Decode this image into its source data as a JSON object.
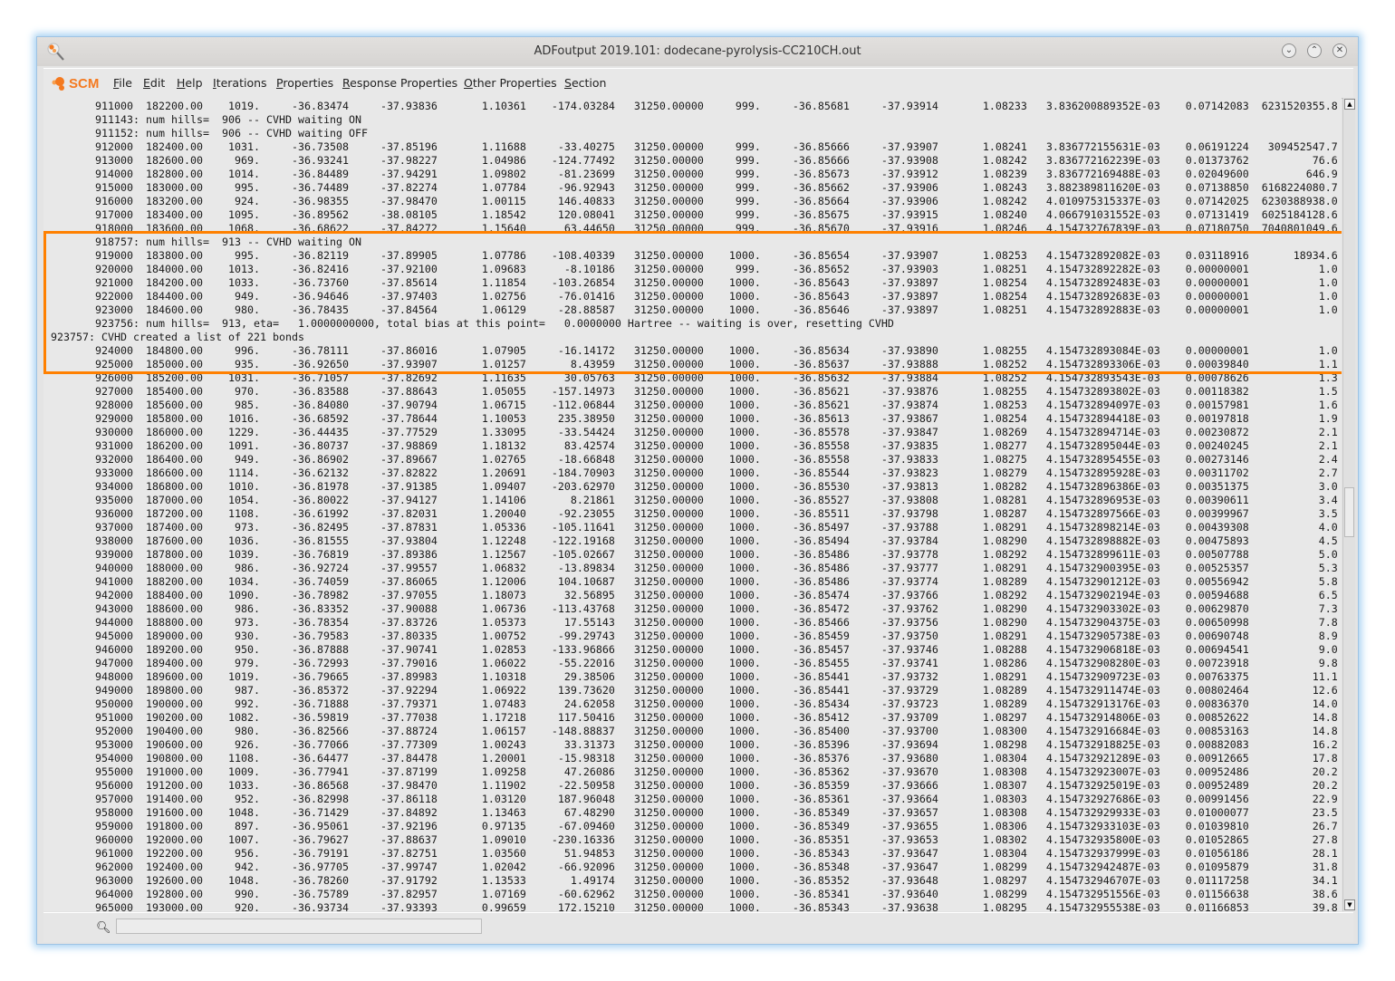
{
  "window": {
    "title": "ADFoutput 2019.101: dodecane-pyrolysis-CC210CH.out",
    "controls": [
      "minimize",
      "maximize",
      "close"
    ]
  },
  "menubar": {
    "logo": "SCM",
    "items": [
      {
        "label": "File",
        "mnemonic": "F",
        "rest": "ile"
      },
      {
        "label": "Edit",
        "mnemonic": "E",
        "rest": "dit"
      },
      {
        "label": "Help",
        "mnemonic": "H",
        "rest": "elp"
      },
      {
        "label": "Iterations",
        "mnemonic": "I",
        "rest": "terations"
      },
      {
        "label": "Properties",
        "mnemonic": "P",
        "rest": "roperties"
      },
      {
        "label": "Response Properties",
        "mnemonic": "R",
        "rest": "esponse Properties"
      },
      {
        "label": "Other Properties",
        "mnemonic": "O",
        "rest": "ther Properties"
      },
      {
        "label": "Section",
        "mnemonic": "S",
        "rest": "ection"
      }
    ]
  },
  "highlight": {
    "color": "#ff8000"
  },
  "search": {
    "value": "",
    "placeholder": ""
  },
  "output_lines": [
    {
      "row": "911000 182200.00 1019. -36.83474 -37.93836 1.10361 -174.03284 31250.00000 999. -36.85681 -37.93914 1.08233 3.836200889352E-03 0.07142083 6231520355.8"
    },
    {
      "msg": "       911143: num hills=  906 -- CVHD waiting ON"
    },
    {
      "msg": "       911152: num hills=  906 -- CVHD waiting OFF"
    },
    {
      "row": "912000 182400.00 1031. -36.73508 -37.85196 1.11688 -33.40275 31250.00000 999. -36.85666 -37.93907 1.08241 3.836772155631E-03 0.06191224 309452547.7"
    },
    {
      "row": "913000 182600.00 969. -36.93241 -37.98227 1.04986 -124.77492 31250.00000 999. -36.85666 -37.93908 1.08242 3.836772162239E-03 0.01373762 76.6"
    },
    {
      "row": "914000 182800.00 1014. -36.84489 -37.94291 1.09802 -81.23699 31250.00000 999. -36.85673 -37.93912 1.08239 3.836772169488E-03 0.02049600 646.9"
    },
    {
      "row": "915000 183000.00 995. -36.74489 -37.82274 1.07784 -96.92943 31250.00000 999. -36.85662 -37.93906 1.08243 3.882389811620E-03 0.07138850 6168224080.7"
    },
    {
      "row": "916000 183200.00 924. -36.98355 -37.98470 1.00115 146.40833 31250.00000 999. -36.85664 -37.93906 1.08242 4.010975315337E-03 0.07142025 6230388938.0"
    },
    {
      "row": "917000 183400.00 1095. -36.89562 -38.08105 1.18542 120.08041 31250.00000 999. -36.85675 -37.93915 1.08240 4.066791031552E-03 0.07131419 6025184128.6"
    },
    {
      "row": "918000 183600.00 1068. -36.68622 -37.84272 1.15640 63.44650 31250.00000 999. -36.85670 -37.93916 1.08246 4.154732767839E-03 0.07180750 7040801049.6"
    },
    {
      "msg": "       918757: num hills=  913 -- CVHD waiting ON"
    },
    {
      "row": "919000 183800.00 995. -36.82119 -37.89905 1.07786 -108.40339 31250.00000 1000. -36.85654 -37.93907 1.08253 4.154732892082E-03 0.03118916 18934.6"
    },
    {
      "row": "920000 184000.00 1013. -36.82416 -37.92100 1.09683 -8.10186 31250.00000 999. -36.85652 -37.93903 1.08251 4.154732892282E-03 0.00000001 1.0"
    },
    {
      "row": "921000 184200.00 1033. -36.73760 -37.85614 1.11854 -103.26854 31250.00000 1000. -36.85643 -37.93897 1.08254 4.154732892483E-03 0.00000001 1.0"
    },
    {
      "row": "922000 184400.00 949. -36.94646 -37.97403 1.02756 -76.01416 31250.00000 1000. -36.85643 -37.93897 1.08254 4.154732892683E-03 0.00000001 1.0"
    },
    {
      "row": "923000 184600.00 980. -36.78435 -37.84564 1.06129 -28.88587 31250.00000 1000. -36.85646 -37.93897 1.08251 4.154732892883E-03 0.00000001 1.0"
    },
    {
      "msg": "       923756: num hills=  913, eta=   1.0000000000, total bias at this point=   0.0000000 Hartree -- waiting is over, resetting CVHD"
    },
    {
      "msg": "923757: CVHD created a list of 221 bonds"
    },
    {
      "row": "924000 184800.00 996. -36.78111 -37.86016 1.07905 -16.14172 31250.00000 1000. -36.85634 -37.93890 1.08255 4.154732893084E-03 0.00000001 1.0"
    },
    {
      "row": "925000 185000.00 935. -36.92650 -37.93907 1.01257 8.43959 31250.00000 1000. -36.85637 -37.93888 1.08252 4.154732893306E-03 0.00039840 1.1"
    },
    {
      "row": "926000 185200.00 1031. -36.71057 -37.82692 1.11635 30.05763 31250.00000 1000. -36.85632 -37.93884 1.08252 4.154732893543E-03 0.00078626 1.3"
    },
    {
      "row": "927000 185400.00 970. -36.83588 -37.88643 1.05055 -157.14973 31250.00000 1000. -36.85621 -37.93876 1.08255 4.154732893802E-03 0.00118382 1.5"
    },
    {
      "row": "928000 185600.00 985. -36.84080 -37.90794 1.06715 -112.06844 31250.00000 1000. -36.85621 -37.93874 1.08253 4.154732894097E-03 0.00157981 1.6"
    },
    {
      "row": "929000 185800.00 1016. -36.68592 -37.78644 1.10053 235.38950 31250.00000 1000. -36.85613 -37.93867 1.08254 4.154732894418E-03 0.00197818 1.9"
    },
    {
      "row": "930000 186000.00 1229. -36.44435 -37.77529 1.33095 -33.54424 31250.00000 1000. -36.85578 -37.93847 1.08269 4.154732894714E-03 0.00230872 2.1"
    },
    {
      "row": "931000 186200.00 1091. -36.80737 -37.98869 1.18132 83.42574 31250.00000 1000. -36.85558 -37.93835 1.08277 4.154732895044E-03 0.00240245 2.1"
    },
    {
      "row": "932000 186400.00 949. -36.86902 -37.89667 1.02765 -18.66848 31250.00000 1000. -36.85558 -37.93833 1.08275 4.154732895455E-03 0.00273146 2.4"
    },
    {
      "row": "933000 186600.00 1114. -36.62132 -37.82822 1.20691 -184.70903 31250.00000 1000. -36.85544 -37.93823 1.08279 4.154732895928E-03 0.00311702 2.7"
    },
    {
      "row": "934000 186800.00 1010. -36.81978 -37.91385 1.09407 -203.62970 31250.00000 1000. -36.85530 -37.93813 1.08282 4.154732896386E-03 0.00351375 3.0"
    },
    {
      "row": "935000 187000.00 1054. -36.80022 -37.94127 1.14106 8.21861 31250.00000 1000. -36.85527 -37.93808 1.08281 4.154732896953E-03 0.00390611 3.4"
    },
    {
      "row": "936000 187200.00 1108. -36.61992 -37.82031 1.20040 -92.23055 31250.00000 1000. -36.85511 -37.93798 1.08287 4.154732897566E-03 0.00399967 3.5"
    },
    {
      "row": "937000 187400.00 973. -36.82495 -37.87831 1.05336 -105.11641 31250.00000 1000. -36.85497 -37.93788 1.08291 4.154732898214E-03 0.00439308 4.0"
    },
    {
      "row": "938000 187600.00 1036. -36.81555 -37.93804 1.12248 -122.19168 31250.00000 1000. -36.85494 -37.93784 1.08290 4.154732898882E-03 0.00475893 4.5"
    },
    {
      "row": "939000 187800.00 1039. -36.76819 -37.89386 1.12567 -105.02667 31250.00000 1000. -36.85486 -37.93778 1.08292 4.154732899611E-03 0.00507788 5.0"
    },
    {
      "row": "940000 188000.00 986. -36.92724 -37.99557 1.06832 -13.89834 31250.00000 1000. -36.85486 -37.93777 1.08291 4.154732900395E-03 0.00525357 5.3"
    },
    {
      "row": "941000 188200.00 1034. -36.74059 -37.86065 1.12006 104.10687 31250.00000 1000. -36.85486 -37.93774 1.08289 4.154732901212E-03 0.00556942 5.8"
    },
    {
      "row": "942000 188400.00 1090. -36.78982 -37.97055 1.18073 32.56895 31250.00000 1000. -36.85474 -37.93766 1.08292 4.154732902194E-03 0.00594688 6.5"
    },
    {
      "row": "943000 188600.00 986. -36.83352 -37.90088 1.06736 -113.43768 31250.00000 1000. -36.85472 -37.93762 1.08290 4.154732903302E-03 0.00629870 7.3"
    },
    {
      "row": "944000 188800.00 973. -36.78354 -37.83726 1.05373 17.55143 31250.00000 1000. -36.85466 -37.93756 1.08290 4.154732904375E-03 0.00650998 7.8"
    },
    {
      "row": "945000 189000.00 930. -36.79583 -37.80335 1.00752 -99.29743 31250.00000 1000. -36.85459 -37.93750 1.08291 4.154732905738E-03 0.00690748 8.9"
    },
    {
      "row": "946000 189200.00 950. -36.87888 -37.90741 1.02853 -133.96866 31250.00000 1000. -36.85457 -37.93746 1.08288 4.154732906818E-03 0.00694541 9.0"
    },
    {
      "row": "947000 189400.00 979. -36.72993 -37.79016 1.06022 -55.22016 31250.00000 1000. -36.85455 -37.93741 1.08286 4.154732908280E-03 0.00723918 9.8"
    },
    {
      "row": "948000 189600.00 1019. -36.79665 -37.89983 1.10318 29.38506 31250.00000 1000. -36.85441 -37.93732 1.08291 4.154732909723E-03 0.00763375 11.1"
    },
    {
      "row": "949000 189800.00 987. -36.85372 -37.92294 1.06922 139.73620 31250.00000 1000. -36.85441 -37.93729 1.08289 4.154732911474E-03 0.00802464 12.6"
    },
    {
      "row": "950000 190000.00 992. -36.71888 -37.79371 1.07483 24.62058 31250.00000 1000. -36.85434 -37.93723 1.08289 4.154732913176E-03 0.00836370 14.0"
    },
    {
      "row": "951000 190200.00 1082. -36.59819 -37.77038 1.17218 117.50416 31250.00000 1000. -36.85412 -37.93709 1.08297 4.154732914806E-03 0.00852622 14.8"
    },
    {
      "row": "952000 190400.00 980. -36.82566 -37.88724 1.06157 -148.88837 31250.00000 1000. -36.85400 -37.93700 1.08300 4.154732916684E-03 0.00853163 14.8"
    },
    {
      "row": "953000 190600.00 926. -36.77066 -37.77309 1.00243 33.31373 31250.00000 1000. -36.85396 -37.93694 1.08298 4.154732918825E-03 0.00882083 16.2"
    },
    {
      "row": "954000 190800.00 1108. -36.64477 -37.84478 1.20001 -15.98318 31250.00000 1000. -36.85376 -37.93680 1.08304 4.154732921289E-03 0.00912665 17.8"
    },
    {
      "row": "955000 191000.00 1009. -36.77941 -37.87199 1.09258 47.26086 31250.00000 1000. -36.85362 -37.93670 1.08308 4.154732923007E-03 0.00952486 20.2"
    },
    {
      "row": "956000 191200.00 1033. -36.86568 -37.98470 1.11902 -22.50958 31250.00000 1000. -36.85359 -37.93666 1.08307 4.154732925019E-03 0.00952489 20.2"
    },
    {
      "row": "957000 191400.00 952. -36.82998 -37.86118 1.03120 187.96048 31250.00000 1000. -36.85361 -37.93664 1.08303 4.154732927686E-03 0.00991456 22.9"
    },
    {
      "row": "958000 191600.00 1048. -36.71429 -37.84892 1.13463 67.48290 31250.00000 1000. -36.85349 -37.93657 1.08308 4.154732929933E-03 0.01000077 23.5"
    },
    {
      "row": "959000 191800.00 897. -36.95061 -37.92196 0.97135 -67.09460 31250.00000 1000. -36.85349 -37.93655 1.08306 4.154732933103E-03 0.01039810 26.7"
    },
    {
      "row": "960000 192000.00 1007. -36.79627 -37.88637 1.09010 -230.16336 31250.00000 1000. -36.85351 -37.93653 1.08302 4.154732935800E-03 0.01052865 27.8"
    },
    {
      "row": "961000 192200.00 956. -36.79191 -37.82751 1.03560 51.94853 31250.00000 1000. -36.85343 -37.93647 1.08304 4.154732937999E-03 0.01056186 28.1"
    },
    {
      "row": "962000 192400.00 942. -36.97705 -37.99747 1.02042 -66.92096 31250.00000 1000. -36.85348 -37.93647 1.08299 4.154732942487E-03 0.01095879 31.8"
    },
    {
      "row": "963000 192600.00 1048. -36.78260 -37.91792 1.13533 1.49174 31250.00000 1000. -36.85352 -37.93648 1.08297 4.154732946707E-03 0.01117258 34.1"
    },
    {
      "row": "964000 192800.00 990. -36.75789 -37.82957 1.07169 -60.62962 31250.00000 1000. -36.85341 -37.93640 1.08299 4.154732951556E-03 0.01156638 38.6"
    },
    {
      "row": "965000 193000.00 920. -36.93734 -37.93393 0.99659 172.15210 31250.00000 1000. -36.85343 -37.93638 1.08295 4.154732955538E-03 0.01166853 39.8"
    }
  ]
}
